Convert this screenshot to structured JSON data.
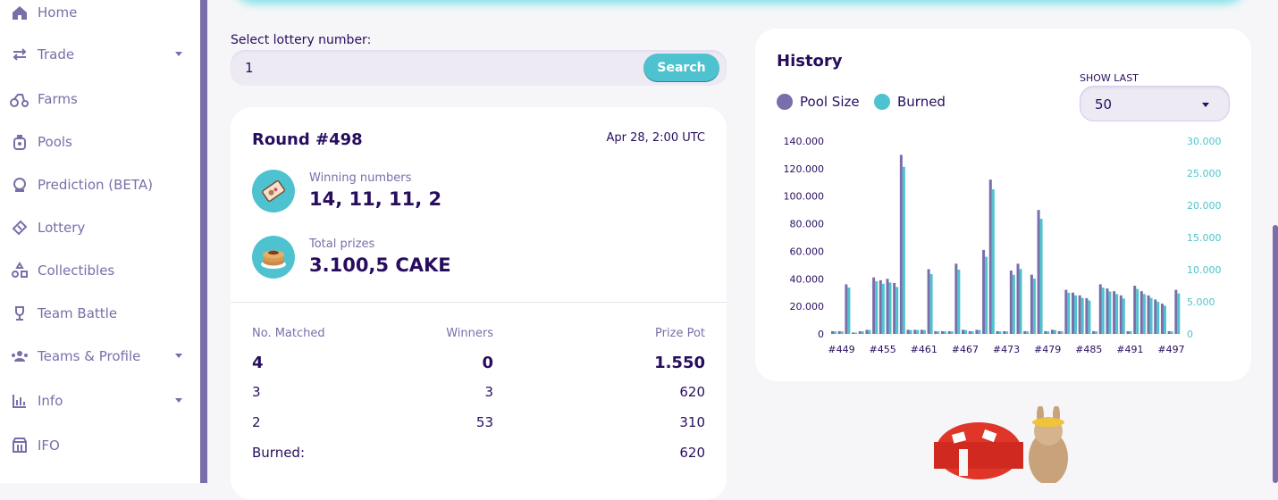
{
  "sidebar": {
    "items": [
      {
        "label": "Home",
        "icon": "home-icon",
        "has_caret": false
      },
      {
        "label": "Trade",
        "icon": "trade-icon",
        "has_caret": true
      },
      {
        "label": "Farms",
        "icon": "farms-icon",
        "has_caret": false
      },
      {
        "label": "Pools",
        "icon": "pools-icon",
        "has_caret": false
      },
      {
        "label": "Prediction (BETA)",
        "icon": "prediction-icon",
        "has_caret": false
      },
      {
        "label": "Lottery",
        "icon": "lottery-ticket-icon",
        "has_caret": false
      },
      {
        "label": "Collectibles",
        "icon": "collectibles-icon",
        "has_caret": false
      },
      {
        "label": "Team Battle",
        "icon": "trophy-icon",
        "has_caret": false
      },
      {
        "label": "Teams & Profile",
        "icon": "teams-icon",
        "has_caret": true
      },
      {
        "label": "Info",
        "icon": "info-chart-icon",
        "has_caret": true
      },
      {
        "label": "IFO",
        "icon": "ifo-icon",
        "has_caret": false
      }
    ]
  },
  "lottery_search": {
    "label": "Select lottery number:",
    "value": "1",
    "button_label": "Search"
  },
  "round": {
    "title": "Round #498",
    "date": "Apr 28, 2:00 UTC",
    "winning_numbers_label": "Winning numbers",
    "winning_numbers": "14, 11, 11, 2",
    "total_prizes_label": "Total prizes",
    "total_prizes": "3.100,5 CAKE",
    "table": {
      "headers": [
        "No. Matched",
        "Winners",
        "Prize Pot"
      ],
      "rows": [
        {
          "matched": "4",
          "winners": "0",
          "prize": "1.550"
        },
        {
          "matched": "3",
          "winners": "3",
          "prize": "620"
        },
        {
          "matched": "2",
          "winners": "53",
          "prize": "310"
        }
      ],
      "burned_label": "Burned:",
      "burned_value": "620"
    }
  },
  "history": {
    "title": "History",
    "show_last_label": "SHOW LAST",
    "show_last_value": "50"
  },
  "colors": {
    "purple": "#7a6eaa",
    "teal": "#4ec3cf",
    "text": "#280d5f"
  },
  "chart_data": {
    "type": "bar",
    "legend": [
      "Pool Size",
      "Burned"
    ],
    "legend_placement": "top-left",
    "x_tick_labels": [
      "#449",
      "#455",
      "#461",
      "#467",
      "#473",
      "#479",
      "#485",
      "#491",
      "#497"
    ],
    "x": [
      448,
      449,
      450,
      451,
      452,
      453,
      454,
      455,
      456,
      457,
      458,
      459,
      460,
      461,
      462,
      463,
      464,
      465,
      466,
      467,
      468,
      469,
      470,
      471,
      472,
      473,
      474,
      475,
      476,
      477,
      478,
      479,
      480,
      481,
      482,
      483,
      484,
      485,
      486,
      487,
      488,
      489,
      490,
      491,
      492,
      493,
      494,
      495,
      496,
      497,
      498
    ],
    "left_axis": {
      "label": "Pool Size",
      "ylim": [
        0,
        140000
      ],
      "ticks": [
        "0",
        "20.000",
        "40.000",
        "60.000",
        "80.000",
        "100.000",
        "120.000",
        "140.000"
      ]
    },
    "right_axis": {
      "label": "Burned",
      "ylim": [
        0,
        30000
      ],
      "ticks": [
        "0",
        "5.000",
        "10.000",
        "15.000",
        "20.000",
        "25.000",
        "30.000"
      ]
    },
    "series": [
      {
        "name": "Pool Size",
        "axis": "left",
        "values": [
          2000,
          2000,
          36000,
          1000,
          2000,
          3000,
          41000,
          39000,
          40000,
          37000,
          130000,
          3000,
          3000,
          3000,
          47000,
          2000,
          2000,
          2000,
          51000,
          3000,
          2000,
          3000,
          61000,
          112000,
          2000,
          2000,
          46000,
          51000,
          2000,
          43000,
          90000,
          2000,
          3000,
          2000,
          32000,
          30000,
          28000,
          26000,
          2000,
          36000,
          33000,
          31000,
          28000,
          2000,
          35000,
          31000,
          28000,
          25000,
          22000,
          2000,
          32000
        ]
      },
      {
        "name": "Burned",
        "axis": "right",
        "values": [
          400,
          400,
          7200,
          200,
          400,
          600,
          8200,
          7800,
          8000,
          7300,
          26000,
          600,
          600,
          600,
          9300,
          400,
          400,
          400,
          10000,
          600,
          400,
          600,
          12000,
          22500,
          400,
          400,
          9200,
          10100,
          400,
          8600,
          17900,
          400,
          600,
          400,
          6400,
          6000,
          5600,
          5200,
          400,
          7200,
          6600,
          6200,
          5500,
          400,
          7000,
          6200,
          5600,
          5000,
          4400,
          400,
          6300
        ]
      }
    ]
  }
}
